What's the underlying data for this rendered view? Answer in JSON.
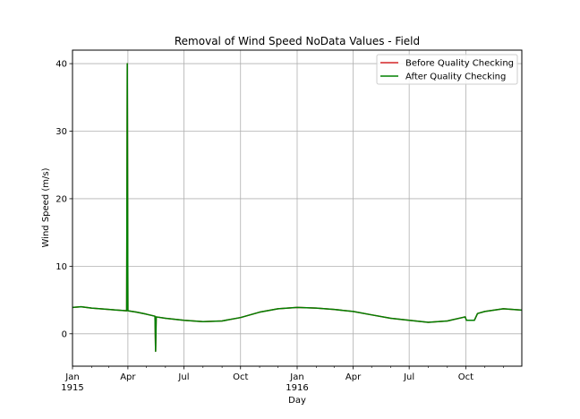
{
  "chart_data": {
    "type": "line",
    "title": "Removal of Wind Speed NoData Values - Field",
    "xlabel": "Day",
    "ylabel": "Wind Speed (m/s)",
    "xlim": [
      "1915-01-01",
      "1916-12-31"
    ],
    "ylim": [
      -4.8,
      42
    ],
    "grid": true,
    "legend_position": "top-right",
    "x_ticks": [
      {
        "date": "1915-01-01",
        "label": "Jan",
        "sublabel": "1915"
      },
      {
        "date": "1915-04-01",
        "label": "Apr",
        "sublabel": ""
      },
      {
        "date": "1915-07-01",
        "label": "Jul",
        "sublabel": ""
      },
      {
        "date": "1915-10-01",
        "label": "Oct",
        "sublabel": ""
      },
      {
        "date": "1916-01-01",
        "label": "Jan",
        "sublabel": "1916"
      },
      {
        "date": "1916-04-01",
        "label": "Apr",
        "sublabel": ""
      },
      {
        "date": "1916-07-01",
        "label": "Jul",
        "sublabel": ""
      },
      {
        "date": "1916-10-01",
        "label": "Oct",
        "sublabel": ""
      }
    ],
    "y_ticks": [
      0,
      10,
      20,
      30,
      40
    ],
    "series": [
      {
        "name": "Before Quality Checking",
        "color": "#d62728",
        "points": [
          [
            "1915-01-01",
            3.9
          ],
          [
            "1915-01-15",
            4.0
          ],
          [
            "1915-02-01",
            3.8
          ],
          [
            "1915-02-15",
            3.7
          ],
          [
            "1915-03-01",
            3.6
          ],
          [
            "1915-03-15",
            3.5
          ],
          [
            "1915-03-30",
            3.4
          ],
          [
            "1915-03-31",
            40.0
          ],
          [
            "1915-04-01",
            3.4
          ],
          [
            "1915-04-15",
            3.2
          ],
          [
            "1915-05-01",
            2.9
          ],
          [
            "1915-05-15",
            2.6
          ],
          [
            "1915-05-16",
            -2.6
          ],
          [
            "1915-05-17",
            2.5
          ],
          [
            "1915-06-01",
            2.3
          ],
          [
            "1915-07-01",
            2.0
          ],
          [
            "1915-08-01",
            1.8
          ],
          [
            "1915-09-01",
            1.9
          ],
          [
            "1915-10-01",
            2.4
          ],
          [
            "1915-11-01",
            3.2
          ],
          [
            "1915-12-01",
            3.7
          ],
          [
            "1916-01-01",
            3.9
          ],
          [
            "1916-02-01",
            3.8
          ],
          [
            "1916-03-01",
            3.6
          ],
          [
            "1916-04-01",
            3.3
          ],
          [
            "1916-05-01",
            2.8
          ],
          [
            "1916-06-01",
            2.3
          ],
          [
            "1916-07-01",
            2.0
          ],
          [
            "1916-08-01",
            1.7
          ],
          [
            "1916-09-01",
            1.9
          ],
          [
            "1916-09-30",
            2.5
          ],
          [
            "1916-10-02",
            2.0
          ],
          [
            "1916-10-15",
            2.0
          ],
          [
            "1916-10-20",
            3.0
          ],
          [
            "1916-11-01",
            3.3
          ],
          [
            "1916-12-01",
            3.7
          ],
          [
            "1916-12-31",
            3.5
          ]
        ]
      },
      {
        "name": "After Quality Checking",
        "color": "#008000",
        "points": [
          [
            "1915-01-01",
            3.9
          ],
          [
            "1915-01-15",
            4.0
          ],
          [
            "1915-02-01",
            3.8
          ],
          [
            "1915-02-15",
            3.7
          ],
          [
            "1915-03-01",
            3.6
          ],
          [
            "1915-03-15",
            3.5
          ],
          [
            "1915-03-30",
            3.4
          ],
          [
            "1915-03-31",
            40.0
          ],
          [
            "1915-04-01",
            3.4
          ],
          [
            "1915-04-15",
            3.2
          ],
          [
            "1915-05-01",
            2.9
          ],
          [
            "1915-05-15",
            2.6
          ],
          [
            "1915-05-16",
            -2.6
          ],
          [
            "1915-05-17",
            2.5
          ],
          [
            "1915-06-01",
            2.3
          ],
          [
            "1915-07-01",
            2.0
          ],
          [
            "1915-08-01",
            1.8
          ],
          [
            "1915-09-01",
            1.9
          ],
          [
            "1915-10-01",
            2.4
          ],
          [
            "1915-11-01",
            3.2
          ],
          [
            "1915-12-01",
            3.7
          ],
          [
            "1916-01-01",
            3.9
          ],
          [
            "1916-02-01",
            3.8
          ],
          [
            "1916-03-01",
            3.6
          ],
          [
            "1916-04-01",
            3.3
          ],
          [
            "1916-05-01",
            2.8
          ],
          [
            "1916-06-01",
            2.3
          ],
          [
            "1916-07-01",
            2.0
          ],
          [
            "1916-08-01",
            1.7
          ],
          [
            "1916-09-01",
            1.9
          ],
          [
            "1916-09-30",
            2.5
          ],
          [
            "1916-10-02",
            2.0
          ],
          [
            "1916-10-15",
            2.0
          ],
          [
            "1916-10-20",
            3.0
          ],
          [
            "1916-11-01",
            3.3
          ],
          [
            "1916-12-01",
            3.7
          ],
          [
            "1916-12-31",
            3.5
          ]
        ]
      }
    ]
  }
}
